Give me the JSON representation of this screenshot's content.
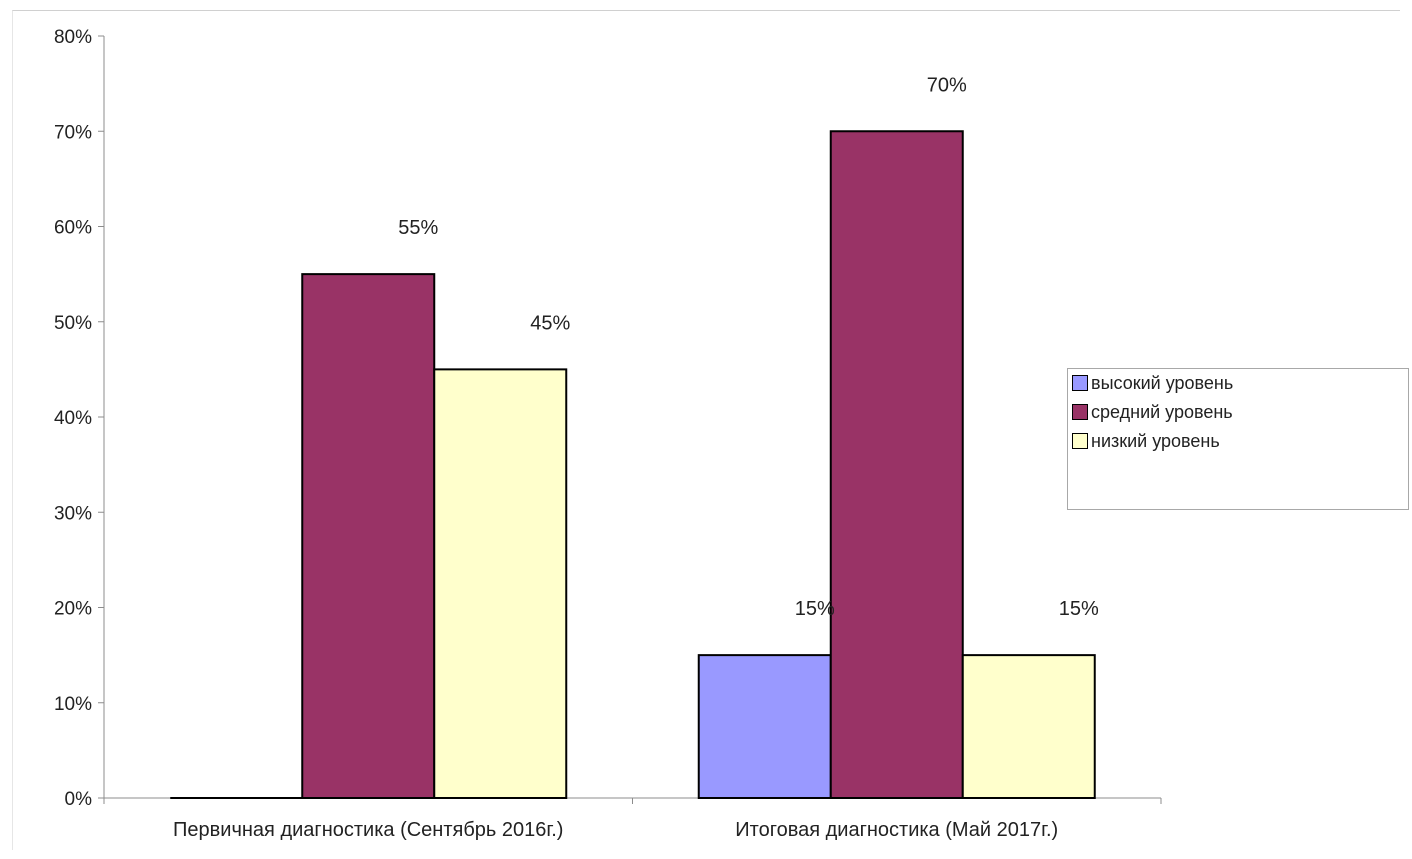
{
  "chart_data": {
    "type": "bar",
    "title": "",
    "xlabel": "",
    "ylabel": "",
    "categories": [
      "Первичная диагностика (Сентябрь 2016г.)",
      "Итоговая диагностика (Май 2017г.)"
    ],
    "series": [
      {
        "name": "высокий уровень",
        "color": "#9999ff",
        "values": [
          0,
          15
        ],
        "labels": [
          "",
          "15%"
        ]
      },
      {
        "name": "средний уровень",
        "color": "#993366",
        "values": [
          55,
          70
        ],
        "labels": [
          "55%",
          "70%"
        ]
      },
      {
        "name": "низкий уровень",
        "color": "#ffffcc",
        "values": [
          45,
          15
        ],
        "labels": [
          "45%",
          "15%"
        ]
      }
    ],
    "ylim": [
      0,
      80
    ],
    "yticks": [
      0,
      10,
      20,
      30,
      40,
      50,
      60,
      70,
      80
    ],
    "ytick_labels": [
      "0%",
      "10%",
      "20%",
      "30%",
      "40%",
      "50%",
      "60%",
      "70%",
      "80%"
    ],
    "grid": false,
    "legend_position": "right"
  }
}
